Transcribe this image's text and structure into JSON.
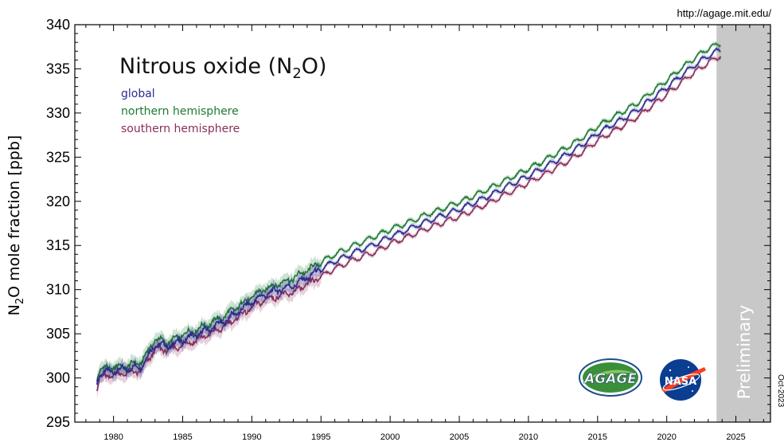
{
  "source_url": "http://agage.mit.edu/",
  "date_stamp": "Oct-2023",
  "preliminary_label": "Preliminary",
  "logos": {
    "agage": "AGAGE",
    "nasa": "NASA"
  },
  "chart_data": {
    "type": "line",
    "title_main": "Nitrous oxide (N",
    "title_sub": "2",
    "title_end": "O)",
    "ylabel_main": "N",
    "ylabel_sub": "2",
    "ylabel_end": "O mole fraction [ppb]",
    "xlim": [
      1977.2,
      2027.5
    ],
    "ylim": [
      295,
      340
    ],
    "y_ticks": [
      295,
      300,
      305,
      310,
      315,
      320,
      325,
      330,
      335,
      340
    ],
    "x_ticks": [
      1980,
      1985,
      1990,
      1995,
      2000,
      2005,
      2010,
      2015,
      2020,
      2025
    ],
    "preliminary_range": [
      2023.6,
      2027.5
    ],
    "legend_position": "top-left",
    "series": [
      {
        "name": "global",
        "color": "#2b2a8f",
        "points": [
          [
            1978.8,
            299.5
          ],
          [
            1979.0,
            300.5
          ],
          [
            1980.0,
            300.8
          ],
          [
            1981.0,
            301.0
          ],
          [
            1982.0,
            301.3
          ],
          [
            1982.5,
            302.5
          ],
          [
            1983.0,
            303.8
          ],
          [
            1984.0,
            303.6
          ],
          [
            1985.0,
            304.3
          ],
          [
            1986.0,
            304.9
          ],
          [
            1987.0,
            305.6
          ],
          [
            1988.0,
            306.4
          ],
          [
            1989.0,
            307.5
          ],
          [
            1990.0,
            308.6
          ],
          [
            1991.0,
            309.5
          ],
          [
            1992.0,
            310.0
          ],
          [
            1993.0,
            310.5
          ],
          [
            1994.0,
            311.4
          ],
          [
            1995.0,
            312.3
          ],
          [
            1996.0,
            313.2
          ],
          [
            1997.0,
            313.9
          ],
          [
            1998.0,
            314.6
          ],
          [
            1999.0,
            315.2
          ],
          [
            2000.0,
            316.0
          ],
          [
            2001.0,
            316.6
          ],
          [
            2002.0,
            317.3
          ],
          [
            2003.0,
            317.9
          ],
          [
            2004.0,
            318.5
          ],
          [
            2005.0,
            319.1
          ],
          [
            2006.0,
            319.8
          ],
          [
            2007.0,
            320.5
          ],
          [
            2008.0,
            321.3
          ],
          [
            2009.0,
            322.1
          ],
          [
            2010.0,
            322.9
          ],
          [
            2011.0,
            323.7
          ],
          [
            2012.0,
            324.6
          ],
          [
            2013.0,
            325.5
          ],
          [
            2014.0,
            326.5
          ],
          [
            2015.0,
            327.7
          ],
          [
            2016.0,
            328.6
          ],
          [
            2017.0,
            329.5
          ],
          [
            2018.0,
            330.5
          ],
          [
            2019.0,
            331.7
          ],
          [
            2020.0,
            332.9
          ],
          [
            2021.0,
            334.2
          ],
          [
            2022.0,
            335.4
          ],
          [
            2023.0,
            336.5
          ],
          [
            2023.9,
            337.2
          ]
        ]
      },
      {
        "name": "northern hemisphere",
        "color": "#1e7a35",
        "points": [
          [
            1978.8,
            300.0
          ],
          [
            1979.0,
            301.0
          ],
          [
            1980.0,
            301.2
          ],
          [
            1981.0,
            301.4
          ],
          [
            1982.0,
            301.8
          ],
          [
            1982.5,
            303.0
          ],
          [
            1983.0,
            304.4
          ],
          [
            1984.0,
            304.0
          ],
          [
            1985.0,
            304.9
          ],
          [
            1986.0,
            305.5
          ],
          [
            1987.0,
            306.2
          ],
          [
            1988.0,
            307.0
          ],
          [
            1989.0,
            308.1
          ],
          [
            1990.0,
            309.2
          ],
          [
            1991.0,
            310.1
          ],
          [
            1992.0,
            310.7
          ],
          [
            1993.0,
            311.3
          ],
          [
            1994.0,
            312.2
          ],
          [
            1995.0,
            313.1
          ],
          [
            1996.0,
            314.0
          ],
          [
            1997.0,
            314.7
          ],
          [
            1998.0,
            315.4
          ],
          [
            1999.0,
            316.1
          ],
          [
            2000.0,
            316.8
          ],
          [
            2001.0,
            317.4
          ],
          [
            2002.0,
            318.1
          ],
          [
            2003.0,
            318.7
          ],
          [
            2004.0,
            319.3
          ],
          [
            2005.0,
            319.9
          ],
          [
            2006.0,
            320.6
          ],
          [
            2007.0,
            321.3
          ],
          [
            2008.0,
            322.1
          ],
          [
            2009.0,
            322.9
          ],
          [
            2010.0,
            323.7
          ],
          [
            2011.0,
            324.5
          ],
          [
            2012.0,
            325.4
          ],
          [
            2013.0,
            326.3
          ],
          [
            2014.0,
            327.3
          ],
          [
            2015.0,
            328.5
          ],
          [
            2016.0,
            329.4
          ],
          [
            2017.0,
            330.3
          ],
          [
            2018.0,
            331.3
          ],
          [
            2019.0,
            332.5
          ],
          [
            2020.0,
            333.7
          ],
          [
            2021.0,
            335.0
          ],
          [
            2022.0,
            336.2
          ],
          [
            2023.0,
            337.3
          ],
          [
            2023.9,
            337.9
          ]
        ]
      },
      {
        "name": "southern hemisphere",
        "color": "#8a2e5a",
        "points": [
          [
            1978.8,
            299.0
          ],
          [
            1979.0,
            300.0
          ],
          [
            1980.0,
            300.4
          ],
          [
            1981.0,
            300.6
          ],
          [
            1982.0,
            300.8
          ],
          [
            1982.5,
            302.0
          ],
          [
            1983.0,
            303.3
          ],
          [
            1984.0,
            303.2
          ],
          [
            1985.0,
            303.7
          ],
          [
            1986.0,
            304.3
          ],
          [
            1987.0,
            305.0
          ],
          [
            1988.0,
            305.8
          ],
          [
            1989.0,
            306.9
          ],
          [
            1990.0,
            308.0
          ],
          [
            1991.0,
            308.9
          ],
          [
            1992.0,
            309.3
          ],
          [
            1993.0,
            309.7
          ],
          [
            1994.0,
            310.6
          ],
          [
            1995.0,
            311.5
          ],
          [
            1996.0,
            312.4
          ],
          [
            1997.0,
            313.1
          ],
          [
            1998.0,
            313.8
          ],
          [
            1999.0,
            314.3
          ],
          [
            2000.0,
            315.2
          ],
          [
            2001.0,
            315.8
          ],
          [
            2002.0,
            316.5
          ],
          [
            2003.0,
            317.1
          ],
          [
            2004.0,
            317.7
          ],
          [
            2005.0,
            318.3
          ],
          [
            2006.0,
            319.0
          ],
          [
            2007.0,
            319.7
          ],
          [
            2008.0,
            320.5
          ],
          [
            2009.0,
            321.3
          ],
          [
            2010.0,
            322.1
          ],
          [
            2011.0,
            322.9
          ],
          [
            2012.0,
            323.8
          ],
          [
            2013.0,
            324.7
          ],
          [
            2014.0,
            325.7
          ],
          [
            2015.0,
            326.9
          ],
          [
            2016.0,
            327.8
          ],
          [
            2017.0,
            328.7
          ],
          [
            2018.0,
            329.7
          ],
          [
            2019.0,
            330.9
          ],
          [
            2020.0,
            332.1
          ],
          [
            2021.0,
            333.4
          ],
          [
            2022.0,
            334.6
          ],
          [
            2023.0,
            335.7
          ],
          [
            2023.9,
            336.5
          ]
        ]
      }
    ]
  }
}
